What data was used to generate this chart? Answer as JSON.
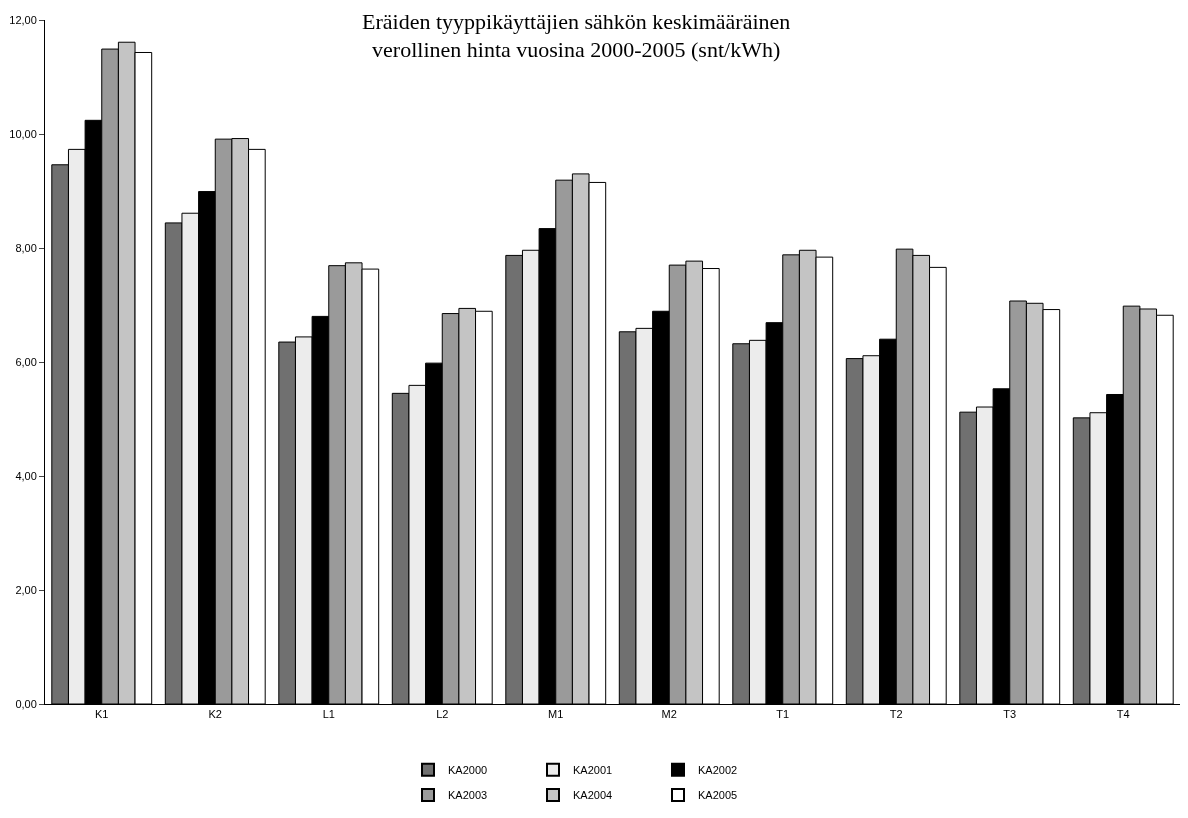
{
  "chart_data": {
    "type": "bar",
    "title": "Eräiden tyyppikäyttäjien sähkön keskimääräinen\nverollinen hinta vuosina 2000-2005 (snt/kWh)",
    "categories": [
      "K1",
      "K2",
      "L1",
      "L2",
      "M1",
      "M2",
      "T1",
      "T2",
      "T3",
      "T4"
    ],
    "series": [
      {
        "name": "KA2000",
        "color": "#707070",
        "values": [
          9.46,
          8.44,
          6.35,
          5.45,
          7.87,
          6.53,
          6.32,
          6.06,
          5.12,
          5.02
        ]
      },
      {
        "name": "KA2001",
        "color": "#ececec",
        "values": [
          9.73,
          8.61,
          6.44,
          5.59,
          7.96,
          6.59,
          6.38,
          6.11,
          5.21,
          5.11
        ]
      },
      {
        "name": "KA2002",
        "color": "#000000",
        "values": [
          10.24,
          8.99,
          6.8,
          5.98,
          8.34,
          6.89,
          6.69,
          6.4,
          5.53,
          5.43
        ]
      },
      {
        "name": "KA2003",
        "color": "#9a9a9a",
        "values": [
          11.49,
          9.91,
          7.69,
          6.85,
          9.19,
          7.7,
          7.88,
          7.98,
          7.07,
          6.98
        ]
      },
      {
        "name": "KA2004",
        "color": "#c4c4c4",
        "values": [
          11.61,
          9.92,
          7.74,
          6.94,
          9.3,
          7.77,
          7.96,
          7.87,
          7.03,
          6.93
        ]
      },
      {
        "name": "KA2005",
        "color": "#ffffff",
        "values": [
          11.43,
          9.73,
          7.63,
          6.89,
          9.15,
          7.64,
          7.84,
          7.66,
          6.92,
          6.82
        ]
      }
    ],
    "ylim": [
      0,
      12
    ],
    "yticks": [
      {
        "value": 0,
        "label": "0,00"
      },
      {
        "value": 2,
        "label": "2,00"
      },
      {
        "value": 4,
        "label": "4,00"
      },
      {
        "value": 6,
        "label": "6,00"
      },
      {
        "value": 8,
        "label": "8,00"
      },
      {
        "value": 10,
        "label": "10,00"
      },
      {
        "value": 12,
        "label": "12,00"
      }
    ],
    "legend": "bottom"
  }
}
